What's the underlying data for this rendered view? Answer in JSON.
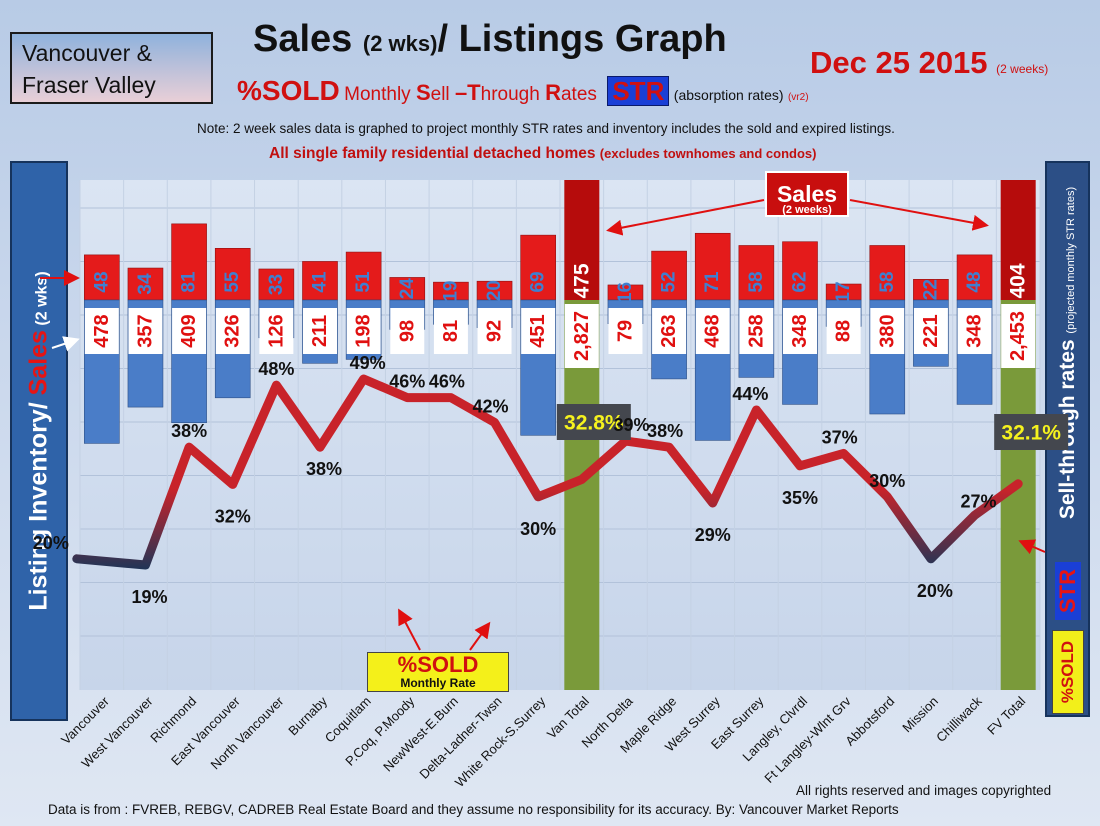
{
  "header": {
    "region_line1": "Vancouver &",
    "region_line2": "Fraser Valley",
    "title_a": "Sales",
    "title_b": "(2 wks)",
    "title_c": "/ Listings Graph",
    "date": "Dec 25 2015",
    "date_note": "(2 weeks)",
    "sub_sold": "%SOLD",
    "sub_words": [
      "Monthly ",
      "S",
      "ell ",
      "–T",
      "hrough ",
      "R",
      "ates"
    ],
    "str_label": "STR",
    "abs_label": "(absorption rates)",
    "vr": "(vr2)",
    "note": "Note: 2 week sales data is graphed to project monthly STR rates and inventory includes the sold and expired listings.",
    "note2": "All single family residential detached homes",
    "note2_small": "(excludes townhomes and condos)"
  },
  "left_axis": {
    "part1": "Listing Inventory/ ",
    "part2": "Sales",
    "part3": " (2 wks)"
  },
  "right_axis": {
    "main": "Sell-through rates",
    "small": "(projected monthly STR rates)",
    "str": "STR",
    "sold": "%SOLD"
  },
  "callouts": {
    "sales": "Sales",
    "sales_sub": "(2 weeks)",
    "sold": "%SOLD",
    "sold_sub": "Monthly Rate"
  },
  "footer": {
    "rights": "All rights reserved and  images copyrighted",
    "source": "Data is  from : FVREB, REBGV, CADREB Real Estate Board and they assume  no responsibility  for its accuracy. By: Vancouver Market Reports"
  },
  "colors": {
    "sales_bar": "#e41b1b",
    "inventory_bar": "#4a7dc8",
    "total_bar": "#7a9a3a",
    "total_sales": "#b60c0c",
    "str_line": "#c8232a",
    "str_line_low": "#1f3557",
    "highlight": "#f5f21e"
  },
  "chart_data": {
    "type": "bar",
    "title": "Sales (2 wks)/ Listings Graph",
    "categories": [
      "Vancouver",
      "West Vancouver",
      "Richmond",
      "East Vancouver",
      "North Vancouver",
      "Burnaby",
      "Coquitlam",
      "P.Coq, P.Moody",
      "NewWest-E.Burn",
      "Delta-Ladner-Twsn",
      "White Rock-S.Surrey",
      "Van Total",
      "North Delta",
      "Maple Ridge",
      "West Surrey",
      "East Surrey",
      "Langley, Clvrdl",
      "Ft Langley-Wlnt Grv",
      "Abbotsford",
      "Mission",
      "Chilliwack",
      "FV Total"
    ],
    "series": [
      {
        "name": "Sales (2 weeks)",
        "values": [
          48,
          34,
          81,
          55,
          33,
          41,
          51,
          24,
          19,
          20,
          69,
          475,
          16,
          52,
          71,
          58,
          62,
          17,
          58,
          22,
          48,
          404
        ]
      },
      {
        "name": "Listing Inventory",
        "values": [
          478,
          357,
          409,
          326,
          126,
          211,
          198,
          98,
          81,
          92,
          451,
          2827,
          79,
          263,
          468,
          258,
          348,
          88,
          380,
          221,
          348,
          2453
        ]
      },
      {
        "name": "%SOLD Monthly Rate",
        "values": [
          20,
          19,
          38,
          32,
          48,
          38,
          49,
          46,
          46,
          42,
          30,
          32.8,
          39,
          38,
          29,
          44,
          35,
          37,
          30,
          20,
          27,
          32.1
        ]
      }
    ],
    "value_labels": {
      "sales": [
        "48",
        "34",
        "81",
        "55",
        "33",
        "41",
        "51",
        "24",
        "19",
        "20",
        "69",
        "475",
        "16",
        "52",
        "71",
        "58",
        "62",
        "17",
        "58",
        "22",
        "48",
        "404"
      ],
      "inventory": [
        "478",
        "357",
        "409",
        "326",
        "126",
        "211",
        "198",
        "98",
        "81",
        "92",
        "451",
        "2,827",
        "79",
        "263",
        "468",
        "258",
        "348",
        "88",
        "380",
        "221",
        "348",
        "2,453"
      ],
      "str": [
        "20%",
        "19%",
        "38%",
        "32%",
        "48%",
        "38%",
        "49%",
        "46%",
        "46%",
        "42%",
        "30%",
        "32.8%",
        "39%",
        "38%",
        "29%",
        "44%",
        "35%",
        "37%",
        "30%",
        "20%",
        "27%",
        "32.1%"
      ]
    },
    "total_indices": [
      11,
      21
    ],
    "xlabel": "",
    "ylabel": "Listing Inventory/ Sales (2 wks)",
    "y2label": "Sell-through rates",
    "grid": true
  }
}
